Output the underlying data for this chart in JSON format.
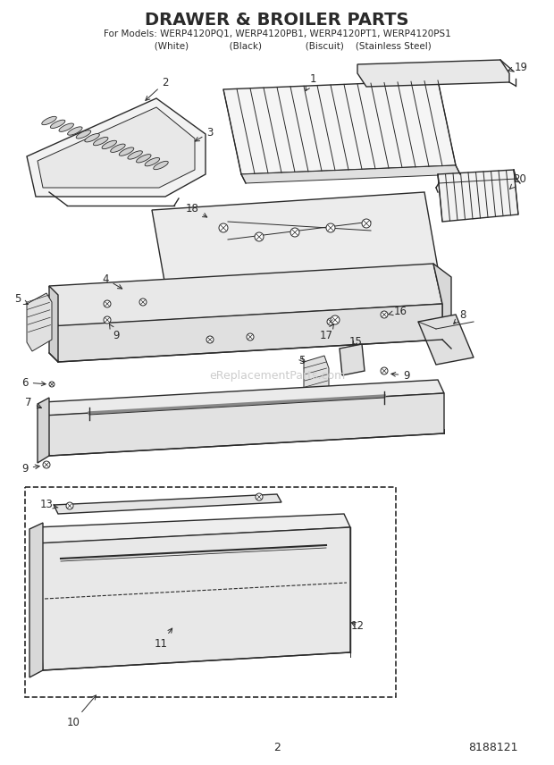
{
  "title": "DRAWER & BROILER PARTS",
  "subtitle": "For Models: WERP4120PQ1, WERP4120PB1, WERP4120PT1, WERP4120PS1",
  "subtitle2": "           (White)              (Black)               (Biscuit)    (Stainless Steel)",
  "page_number": "2",
  "part_number": "8188121",
  "bg": "#ffffff",
  "lc": "#2a2a2a",
  "watermark": "eReplacementParts.com",
  "watermark_color": "#cccccc"
}
